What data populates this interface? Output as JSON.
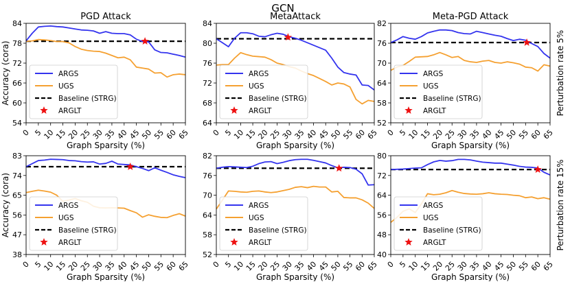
{
  "figure": {
    "suptitle": "GCN",
    "column_titles": [
      "PGD Attack",
      "MetaAttack",
      "Meta-PGD Attack"
    ],
    "row_labels": [
      "Perturbation rate 5%",
      "Perturbation rate 15%"
    ],
    "ylabel": "Accuracy (cora)",
    "xlabel": "Graph Sparsity (%)"
  },
  "legend": [
    {
      "label": "ARGS",
      "kind": "line",
      "color": "#3333ee"
    },
    {
      "label": "UGS",
      "kind": "line",
      "color": "#f5a030"
    },
    {
      "label": "Baseline (STRG)",
      "kind": "dashed",
      "color": "#000000"
    },
    {
      "label": "ARGLT",
      "kind": "star",
      "color": "#ee1111"
    }
  ],
  "chart_data": [
    {
      "type": "line",
      "title": "PGD Attack",
      "row_label": "",
      "xlabel": "Graph Sparsity (%)",
      "ylabel": "Accuracy (cora)",
      "xlim": [
        0,
        65
      ],
      "ylim": [
        54,
        84
      ],
      "xticks": [
        0,
        5,
        10,
        15,
        20,
        25,
        30,
        35,
        40,
        45,
        50,
        55,
        60,
        65
      ],
      "yticks": [
        54,
        60,
        66,
        72,
        78,
        84
      ],
      "baseline": 78.6,
      "series": [
        {
          "name": "ARGS",
          "color": "#3333ee",
          "x": [
            0,
            2.5,
            5,
            7.5,
            10,
            12.5,
            15,
            17.5,
            20,
            22.5,
            25,
            27.5,
            30,
            32.5,
            35,
            37.5,
            40,
            42.5,
            45,
            47.5,
            50,
            52.5,
            55,
            57.5,
            60,
            62.5,
            65
          ],
          "y": [
            78.7,
            81.0,
            82.9,
            83.1,
            83.2,
            83.0,
            82.9,
            82.6,
            82.3,
            82.0,
            81.9,
            81.7,
            81.0,
            81.5,
            81.0,
            80.9,
            80.9,
            80.5,
            79.2,
            78.5,
            78.4,
            76.0,
            75.2,
            75.1,
            74.7,
            74.3,
            73.8
          ]
        },
        {
          "name": "UGS",
          "color": "#f5a030",
          "x": [
            0,
            2.5,
            5,
            7.5,
            10,
            12.5,
            15,
            17.5,
            20,
            22.5,
            25,
            27.5,
            30,
            32.5,
            35,
            37.5,
            40,
            42.5,
            45,
            47.5,
            50,
            52.5,
            55,
            57.5,
            60,
            62.5,
            65
          ],
          "y": [
            78.6,
            78.7,
            79.1,
            79.0,
            78.8,
            78.5,
            78.5,
            78.1,
            77.0,
            76.2,
            75.8,
            75.6,
            75.5,
            75.0,
            74.3,
            73.6,
            73.8,
            73.0,
            70.8,
            70.5,
            70.2,
            69.0,
            69.1,
            67.8,
            68.5,
            68.7,
            68.5
          ]
        }
      ],
      "arglt": {
        "x": 48.5,
        "y": 78.6
      }
    },
    {
      "type": "line",
      "title": "MetaAttack",
      "row_label": "",
      "xlabel": "Graph Sparsity (%)",
      "ylabel": "",
      "xlim": [
        0,
        65
      ],
      "ylim": [
        64,
        84
      ],
      "xticks": [
        0,
        5,
        10,
        15,
        20,
        25,
        30,
        35,
        40,
        45,
        50,
        55,
        60,
        65
      ],
      "yticks": [
        64,
        68,
        72,
        76,
        80,
        84
      ],
      "baseline": 80.9,
      "series": [
        {
          "name": "ARGS",
          "color": "#3333ee",
          "x": [
            0,
            2.5,
            5,
            7.5,
            10,
            12.5,
            15,
            17.5,
            20,
            22.5,
            25,
            27.5,
            30,
            32.5,
            35,
            37.5,
            40,
            42.5,
            45,
            47.5,
            50,
            52.5,
            55,
            57.5,
            60,
            62.5,
            65
          ],
          "y": [
            80.9,
            80.1,
            79.3,
            81.0,
            82.1,
            82.1,
            81.9,
            81.4,
            81.3,
            81.7,
            82.0,
            81.8,
            81.3,
            81.0,
            80.6,
            80.1,
            79.6,
            79.1,
            78.6,
            77.0,
            75.2,
            74.1,
            73.8,
            73.6,
            71.6,
            71.5,
            70.6
          ]
        },
        {
          "name": "UGS",
          "color": "#f5a030",
          "x": [
            0,
            2.5,
            5,
            7.5,
            10,
            12.5,
            15,
            17.5,
            20,
            22.5,
            25,
            27.5,
            30,
            32.5,
            35,
            37.5,
            40,
            42.5,
            45,
            47.5,
            50,
            52.5,
            55,
            57.5,
            60,
            62.5,
            65
          ],
          "y": [
            75.6,
            75.7,
            75.7,
            77.0,
            78.1,
            77.7,
            77.4,
            77.3,
            77.2,
            76.7,
            76.0,
            75.7,
            75.3,
            75.0,
            74.4,
            73.9,
            73.5,
            72.9,
            72.3,
            71.6,
            72.0,
            71.8,
            71.2,
            68.7,
            67.8,
            68.5,
            68.3
          ]
        }
      ],
      "arglt": {
        "x": 29.5,
        "y": 81.2
      }
    },
    {
      "type": "line",
      "title": "Meta-PGD Attack",
      "row_label": "Perturbation rate 5%",
      "xlabel": "Graph Sparsity (%)",
      "ylabel": "",
      "xlim": [
        0,
        65
      ],
      "ylim": [
        52,
        82
      ],
      "xticks": [
        0,
        5,
        10,
        15,
        20,
        25,
        30,
        35,
        40,
        45,
        50,
        55,
        60,
        65
      ],
      "yticks": [
        52,
        58,
        64,
        70,
        76,
        82
      ],
      "baseline": 76.2,
      "series": [
        {
          "name": "ARGS",
          "color": "#3333ee",
          "x": [
            0,
            2.5,
            5,
            7.5,
            10,
            12.5,
            15,
            17.5,
            20,
            22.5,
            25,
            27.5,
            30,
            32.5,
            35,
            37.5,
            40,
            42.5,
            45,
            47.5,
            50,
            52.5,
            55,
            57.5,
            60,
            62.5,
            65
          ],
          "y": [
            76.2,
            77.0,
            78.0,
            77.5,
            77.2,
            78.0,
            79.1,
            79.6,
            80.0,
            80.0,
            79.8,
            79.2,
            78.9,
            78.8,
            79.6,
            79.2,
            78.8,
            78.4,
            78.1,
            77.4,
            76.8,
            77.2,
            76.9,
            75.9,
            75.0,
            72.9,
            71.5
          ]
        },
        {
          "name": "UGS",
          "color": "#f5a030",
          "x": [
            0,
            2.5,
            5,
            7.5,
            10,
            12.5,
            15,
            17.5,
            20,
            22.5,
            25,
            27.5,
            30,
            32.5,
            35,
            37.5,
            40,
            42.5,
            45,
            47.5,
            50,
            52.5,
            55,
            57.5,
            60,
            62.5,
            65
          ],
          "y": [
            67.8,
            68.8,
            69.3,
            70.5,
            71.8,
            71.9,
            72.0,
            72.5,
            73.2,
            72.5,
            71.7,
            72.0,
            70.8,
            70.4,
            70.2,
            70.6,
            70.8,
            70.2,
            70.0,
            70.4,
            70.1,
            69.7,
            68.8,
            68.6,
            67.6,
            69.5,
            69.1
          ]
        }
      ],
      "arglt": {
        "x": 55.5,
        "y": 76.2
      }
    },
    {
      "type": "line",
      "title": "",
      "row_label": "",
      "xlabel": "Graph Sparsity (%)",
      "ylabel": "Accuracy (cora)",
      "xlim": [
        0,
        65
      ],
      "ylim": [
        38,
        83
      ],
      "xticks": [
        0,
        5,
        10,
        15,
        20,
        25,
        30,
        35,
        40,
        45,
        50,
        55,
        60,
        65
      ],
      "yticks": [
        38,
        47,
        56,
        65,
        74,
        83
      ],
      "baseline": 78.0,
      "series": [
        {
          "name": "ARGS",
          "color": "#3333ee",
          "x": [
            0,
            2.5,
            5,
            7.5,
            10,
            12.5,
            15,
            17.5,
            20,
            22.5,
            25,
            27.5,
            30,
            32.5,
            35,
            37.5,
            40,
            42.5,
            45,
            47.5,
            50,
            52.5,
            55,
            57.5,
            60,
            62.5,
            65
          ],
          "y": [
            78.0,
            79.4,
            80.8,
            81.0,
            81.4,
            81.3,
            81.2,
            80.8,
            80.7,
            80.3,
            80.1,
            80.2,
            79.2,
            79.5,
            80.5,
            79.2,
            79.0,
            78.8,
            78.0,
            77.2,
            76.2,
            77.5,
            76.4,
            75.4,
            74.3,
            73.6,
            73.0
          ]
        },
        {
          "name": "UGS",
          "color": "#f5a030",
          "x": [
            0,
            2.5,
            5,
            7.5,
            10,
            12.5,
            15,
            17.5,
            20,
            22.5,
            25,
            27.5,
            30,
            32.5,
            35,
            37.5,
            40,
            42.5,
            45,
            47.5,
            50,
            52.5,
            55,
            57.5,
            60,
            62.5,
            65
          ],
          "y": [
            66.2,
            66.8,
            67.3,
            66.9,
            66.4,
            65.0,
            62.2,
            62.8,
            63.5,
            62.5,
            61.8,
            60.0,
            59.3,
            59.2,
            59.3,
            59.2,
            59.1,
            58.0,
            57.0,
            55.0,
            56.1,
            55.4,
            54.9,
            54.8,
            55.8,
            56.6,
            55.5
          ]
        }
      ],
      "arglt": {
        "x": 42.5,
        "y": 78.0
      }
    },
    {
      "type": "line",
      "title": "",
      "row_label": "",
      "xlabel": "Graph Sparsity (%)",
      "ylabel": "",
      "xlim": [
        0,
        65
      ],
      "ylim": [
        52,
        82
      ],
      "xticks": [
        0,
        5,
        10,
        15,
        20,
        25,
        30,
        35,
        40,
        45,
        50,
        55,
        60,
        65
      ],
      "yticks": [
        52,
        58,
        64,
        70,
        76,
        82
      ],
      "baseline": 78.2,
      "series": [
        {
          "name": "ARGS",
          "color": "#3333ee",
          "x": [
            0,
            2.5,
            5,
            7.5,
            10,
            12.5,
            15,
            17.5,
            20,
            22.5,
            25,
            27.5,
            30,
            32.5,
            35,
            37.5,
            40,
            42.5,
            45,
            47.5,
            50,
            52.5,
            55,
            57.5,
            60,
            62.5,
            65
          ],
          "y": [
            78.2,
            78.5,
            78.7,
            78.6,
            78.5,
            78.4,
            78.8,
            79.6,
            80.1,
            80.2,
            79.6,
            80.0,
            80.5,
            80.8,
            80.9,
            80.9,
            80.6,
            80.2,
            79.8,
            79.0,
            78.3,
            78.5,
            78.4,
            77.9,
            76.5,
            73.1,
            73.2
          ]
        },
        {
          "name": "UGS",
          "color": "#f5a030",
          "x": [
            0,
            2.5,
            5,
            7.5,
            10,
            12.5,
            15,
            17.5,
            20,
            22.5,
            25,
            27.5,
            30,
            32.5,
            35,
            37.5,
            40,
            42.5,
            45,
            47.5,
            50,
            52.5,
            55,
            57.5,
            60,
            62.5,
            65
          ],
          "y": [
            65.8,
            68.5,
            71.3,
            71.2,
            71.0,
            70.9,
            71.2,
            71.3,
            71.0,
            70.8,
            71.0,
            71.4,
            71.8,
            72.4,
            72.6,
            72.3,
            72.7,
            72.5,
            72.5,
            71.0,
            71.2,
            69.3,
            69.2,
            69.2,
            68.6,
            67.6,
            66.0
          ]
        }
      ],
      "arglt": {
        "x": 50.5,
        "y": 78.2
      }
    },
    {
      "type": "line",
      "title": "",
      "row_label": "Perturbation rate 15%",
      "xlabel": "Graph Sparsity (%)",
      "ylabel": "",
      "xlim": [
        0,
        65
      ],
      "ylim": [
        40,
        80
      ],
      "xticks": [
        0,
        5,
        10,
        15,
        20,
        25,
        30,
        35,
        40,
        45,
        50,
        55,
        60,
        65
      ],
      "yticks": [
        40,
        48,
        56,
        64,
        72,
        80
      ],
      "baseline": 74.4,
      "series": [
        {
          "name": "ARGS",
          "color": "#3333ee",
          "x": [
            0,
            2.5,
            5,
            7.5,
            10,
            12.5,
            15,
            17.5,
            20,
            22.5,
            25,
            27.5,
            30,
            32.5,
            35,
            37.5,
            40,
            42.5,
            45,
            47.5,
            50,
            52.5,
            55,
            57.5,
            60,
            62.5,
            65
          ],
          "y": [
            74.4,
            74.5,
            74.6,
            74.8,
            75.0,
            75.1,
            76.4,
            77.5,
            78.1,
            77.8,
            78.0,
            78.5,
            78.5,
            78.3,
            77.8,
            77.4,
            77.2,
            77.0,
            77.0,
            76.6,
            76.2,
            75.7,
            75.4,
            75.3,
            75.0,
            73.3,
            72.2
          ]
        },
        {
          "name": "UGS",
          "color": "#f5a030",
          "x": [
            0,
            2.5,
            5,
            7.5,
            10,
            12.5,
            15,
            17.5,
            20,
            22.5,
            25,
            27.5,
            30,
            32.5,
            35,
            37.5,
            40,
            42.5,
            45,
            47.5,
            50,
            52.5,
            55,
            57.5,
            60,
            62.5,
            65
          ],
          "y": [
            53.0,
            55.0,
            57.5,
            58.5,
            57.0,
            60.5,
            64.6,
            64.2,
            64.4,
            65.0,
            65.9,
            65.2,
            64.7,
            64.5,
            64.4,
            64.6,
            65.0,
            64.6,
            64.4,
            64.3,
            64.0,
            63.8,
            63.0,
            63.3,
            62.6,
            63.0,
            62.4
          ]
        }
      ],
      "arglt": {
        "x": 60.0,
        "y": 74.4
      }
    }
  ]
}
